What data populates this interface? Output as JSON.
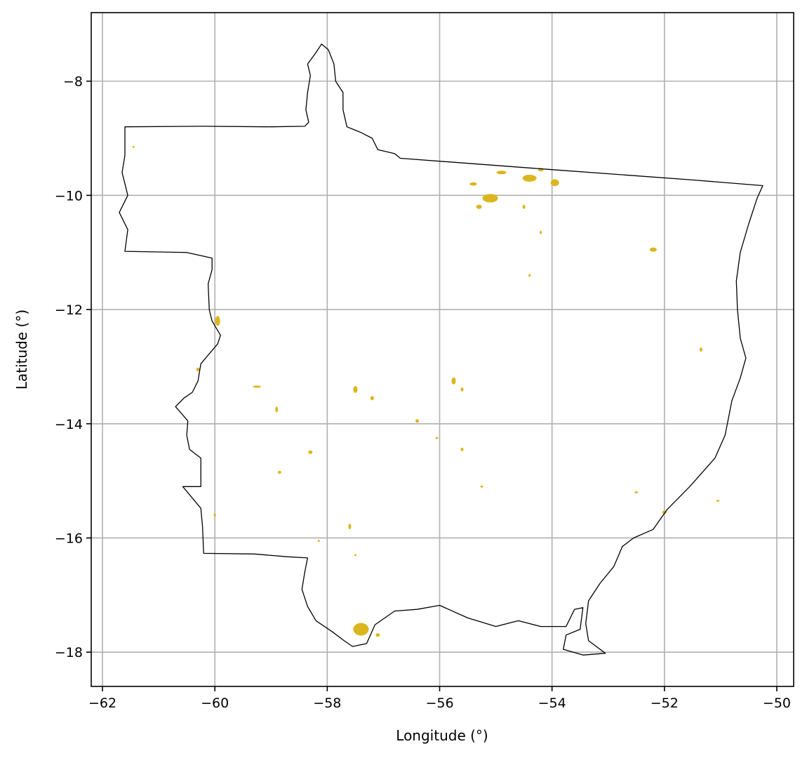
{
  "chart_data": {
    "type": "map",
    "title": "",
    "xlabel": "Longitude (°)",
    "ylabel": "Latitude (°)",
    "xlim": [
      -62.2,
      -49.7
    ],
    "ylim": [
      -18.6,
      -6.8
    ],
    "xticks": [
      {
        "value": -62,
        "label": "−62"
      },
      {
        "value": -60,
        "label": "−60"
      },
      {
        "value": -58,
        "label": "−58"
      },
      {
        "value": -56,
        "label": "−56"
      },
      {
        "value": -54,
        "label": "−54"
      },
      {
        "value": -52,
        "label": "−52"
      },
      {
        "value": -50,
        "label": "−50"
      }
    ],
    "yticks": [
      {
        "value": -8,
        "label": "−8"
      },
      {
        "value": -10,
        "label": "−10"
      },
      {
        "value": -12,
        "label": "−12"
      },
      {
        "value": -14,
        "label": "−14"
      },
      {
        "value": -16,
        "label": "−16"
      },
      {
        "value": -18,
        "label": "−18"
      }
    ],
    "grid": true,
    "colors": {
      "boundary": "#000000",
      "patch": "#dcb61e",
      "grid": "#b0b0b0"
    },
    "boundary": [
      [
        -61.6,
        -8.8
      ],
      [
        -60.2,
        -8.79
      ],
      [
        -59.0,
        -8.8
      ],
      [
        -58.4,
        -8.79
      ],
      [
        -58.33,
        -8.72
      ],
      [
        -58.38,
        -8.5
      ],
      [
        -58.35,
        -8.2
      ],
      [
        -58.3,
        -7.9
      ],
      [
        -58.35,
        -7.7
      ],
      [
        -58.2,
        -7.5
      ],
      [
        -58.1,
        -7.35
      ],
      [
        -57.98,
        -7.45
      ],
      [
        -57.88,
        -7.7
      ],
      [
        -57.85,
        -8.0
      ],
      [
        -57.72,
        -8.2
      ],
      [
        -57.72,
        -8.5
      ],
      [
        -57.65,
        -8.8
      ],
      [
        -57.4,
        -8.9
      ],
      [
        -57.2,
        -9.0
      ],
      [
        -57.1,
        -9.2
      ],
      [
        -56.8,
        -9.27
      ],
      [
        -56.7,
        -9.35
      ],
      [
        -54.0,
        -9.55
      ],
      [
        -51.5,
        -9.73
      ],
      [
        -50.25,
        -9.83
      ],
      [
        -50.35,
        -10.05
      ],
      [
        -50.5,
        -10.5
      ],
      [
        -50.65,
        -11.0
      ],
      [
        -50.72,
        -11.5
      ],
      [
        -50.7,
        -12.0
      ],
      [
        -50.65,
        -12.5
      ],
      [
        -50.55,
        -12.85
      ],
      [
        -50.65,
        -13.2
      ],
      [
        -50.8,
        -13.6
      ],
      [
        -50.92,
        -14.2
      ],
      [
        -51.1,
        -14.6
      ],
      [
        -51.55,
        -15.1
      ],
      [
        -51.95,
        -15.5
      ],
      [
        -52.2,
        -15.85
      ],
      [
        -52.55,
        -16.0
      ],
      [
        -52.75,
        -16.15
      ],
      [
        -52.9,
        -16.5
      ],
      [
        -53.15,
        -16.8
      ],
      [
        -53.35,
        -17.1
      ],
      [
        -53.4,
        -17.5
      ],
      [
        -53.35,
        -17.8
      ],
      [
        -53.05,
        -18.02
      ],
      [
        -53.45,
        -18.05
      ],
      [
        -53.8,
        -17.95
      ],
      [
        -53.75,
        -17.7
      ],
      [
        -53.5,
        -17.6
      ],
      [
        -53.45,
        -17.22
      ],
      [
        -53.6,
        -17.25
      ],
      [
        -53.75,
        -17.55
      ],
      [
        -54.2,
        -17.55
      ],
      [
        -54.6,
        -17.45
      ],
      [
        -55.0,
        -17.55
      ],
      [
        -55.5,
        -17.4
      ],
      [
        -56.0,
        -17.18
      ],
      [
        -56.4,
        -17.25
      ],
      [
        -56.8,
        -17.28
      ],
      [
        -57.15,
        -17.52
      ],
      [
        -57.3,
        -17.85
      ],
      [
        -57.55,
        -17.9
      ],
      [
        -57.7,
        -17.8
      ],
      [
        -57.9,
        -17.65
      ],
      [
        -58.2,
        -17.45
      ],
      [
        -58.35,
        -17.2
      ],
      [
        -58.45,
        -16.9
      ],
      [
        -58.4,
        -16.6
      ],
      [
        -58.35,
        -16.35
      ],
      [
        -58.7,
        -16.33
      ],
      [
        -59.3,
        -16.28
      ],
      [
        -60.2,
        -16.27
      ],
      [
        -60.22,
        -15.8
      ],
      [
        -60.25,
        -15.48
      ],
      [
        -60.57,
        -15.1
      ],
      [
        -60.25,
        -15.1
      ],
      [
        -60.25,
        -14.6
      ],
      [
        -60.45,
        -14.45
      ],
      [
        -60.5,
        -14.2
      ],
      [
        -60.48,
        -13.95
      ],
      [
        -60.7,
        -13.7
      ],
      [
        -60.55,
        -13.55
      ],
      [
        -60.4,
        -13.45
      ],
      [
        -60.3,
        -13.25
      ],
      [
        -60.25,
        -12.95
      ],
      [
        -59.95,
        -12.6
      ],
      [
        -59.9,
        -12.45
      ],
      [
        -60.05,
        -12.2
      ],
      [
        -60.1,
        -12.0
      ],
      [
        -60.12,
        -11.55
      ],
      [
        -60.05,
        -11.3
      ],
      [
        -60.05,
        -11.1
      ],
      [
        -60.5,
        -11.0
      ],
      [
        -61.6,
        -10.98
      ],
      [
        -61.55,
        -10.6
      ],
      [
        -61.7,
        -10.3
      ],
      [
        -61.55,
        -10.0
      ],
      [
        -61.65,
        -9.6
      ],
      [
        -61.6,
        -9.3
      ],
      [
        -61.6,
        -8.8
      ]
    ],
    "patches": [
      [
        -55.4,
        -9.8,
        10,
        5
      ],
      [
        -55.1,
        -10.05,
        22,
        12
      ],
      [
        -54.4,
        -9.7,
        20,
        10
      ],
      [
        -53.95,
        -9.78,
        12,
        10
      ],
      [
        -54.9,
        -9.6,
        14,
        5
      ],
      [
        -54.2,
        -9.55,
        8,
        5
      ],
      [
        -55.3,
        -10.2,
        8,
        6
      ],
      [
        -52.2,
        -10.95,
        10,
        6
      ],
      [
        -59.95,
        -12.2,
        7,
        14
      ],
      [
        -57.4,
        -17.6,
        22,
        18
      ],
      [
        -57.1,
        -17.7,
        6,
        5
      ],
      [
        -57.5,
        -13.4,
        6,
        10
      ],
      [
        -57.2,
        -13.55,
        5,
        6
      ],
      [
        -55.75,
        -13.25,
        6,
        10
      ],
      [
        -55.6,
        -13.4,
        4,
        6
      ],
      [
        -59.25,
        -13.35,
        12,
        3
      ],
      [
        -58.9,
        -13.75,
        4,
        8
      ],
      [
        -58.3,
        -14.5,
        6,
        5
      ],
      [
        -58.85,
        -14.85,
        5,
        4
      ],
      [
        -51.35,
        -12.7,
        4,
        6
      ],
      [
        -52.0,
        -15.55,
        6,
        5
      ],
      [
        -54.5,
        -10.2,
        4,
        6
      ],
      [
        -54.2,
        -10.65,
        3,
        5
      ],
      [
        -56.4,
        -13.95,
        5,
        5
      ],
      [
        -55.6,
        -14.45,
        4,
        5
      ],
      [
        -57.6,
        -15.8,
        4,
        8
      ],
      [
        -60.0,
        -15.6,
        3,
        5
      ],
      [
        -60.3,
        -13.05,
        5,
        5
      ],
      [
        -52.5,
        -15.2,
        5,
        3
      ],
      [
        -51.05,
        -15.35,
        4,
        3
      ],
      [
        -58.15,
        -16.05,
        3,
        3
      ],
      [
        -57.5,
        -16.3,
        3,
        3
      ],
      [
        -61.45,
        -9.15,
        3,
        3
      ],
      [
        -55.25,
        -15.1,
        4,
        3
      ],
      [
        -54.4,
        -11.4,
        3,
        4
      ],
      [
        -56.05,
        -14.25,
        4,
        3
      ]
    ]
  }
}
